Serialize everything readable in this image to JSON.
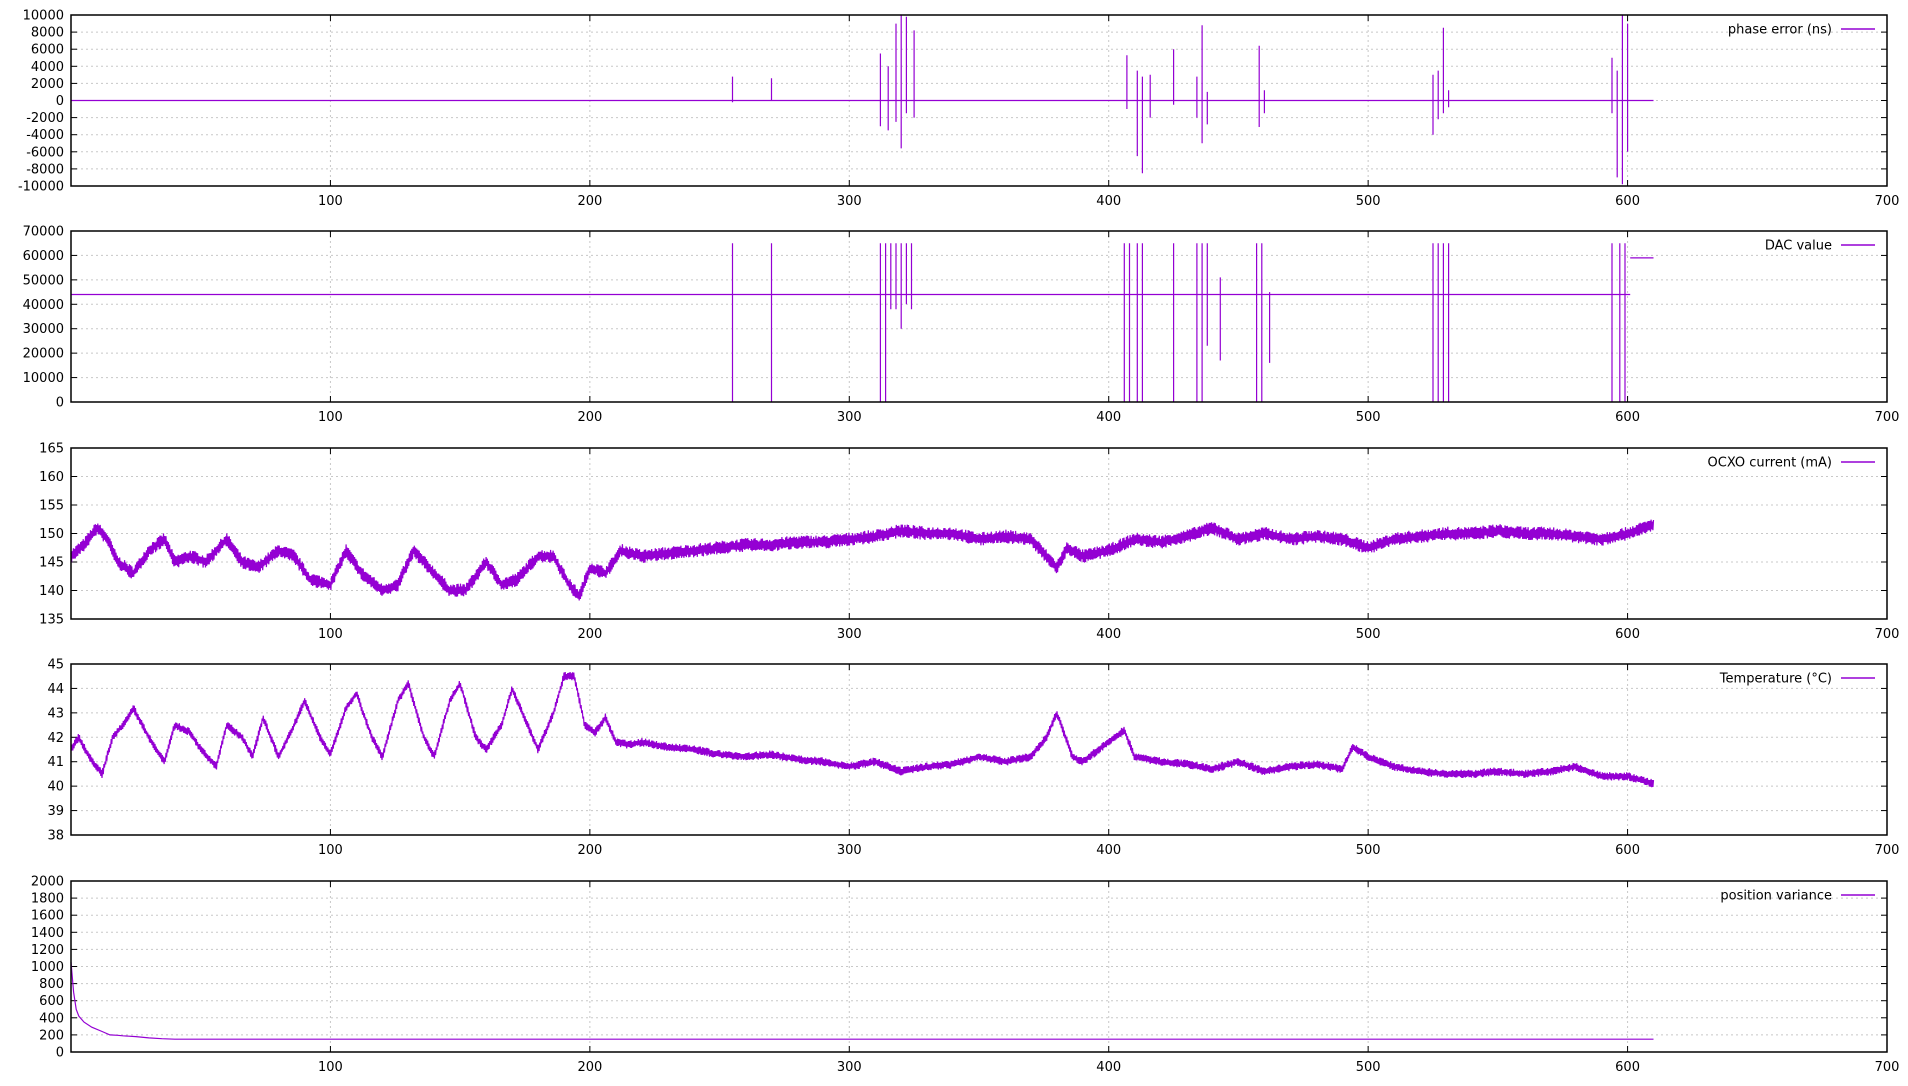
{
  "chart_data": [
    {
      "type": "line",
      "xlim": [
        0,
        700
      ],
      "x_ticks": [
        100,
        200,
        300,
        400,
        500,
        600,
        700
      ],
      "ylim": [
        -10000,
        10000
      ],
      "y_ticks": [
        10000,
        8000,
        6000,
        4000,
        2000,
        0,
        -2000,
        -4000,
        -6000,
        -8000,
        -10000
      ],
      "grid": true,
      "legend": "top-right",
      "series": [
        {
          "name": "phase error (ns)",
          "color": "#9400d3",
          "style": "spikes",
          "x": [
            0,
            610
          ],
          "baseline": 0,
          "spikes": [
            [
              255,
              2800,
              -200
            ],
            [
              270,
              2600,
              0
            ],
            [
              312,
              5500,
              -3000
            ],
            [
              315,
              4000,
              -3500
            ],
            [
              318,
              9000,
              -2500
            ],
            [
              320,
              10000,
              -5600
            ],
            [
              322,
              9800,
              -1500
            ],
            [
              325,
              8200,
              -2000
            ],
            [
              407,
              5300,
              -1000
            ],
            [
              411,
              3500,
              -6500
            ],
            [
              413,
              2800,
              -8500
            ],
            [
              416,
              3000,
              -2000
            ],
            [
              425,
              6000,
              -500
            ],
            [
              434,
              2800,
              -2000
            ],
            [
              436,
              8800,
              -5000
            ],
            [
              438,
              1000,
              -2800
            ],
            [
              458,
              6400,
              -3100
            ],
            [
              460,
              1200,
              -1500
            ],
            [
              525,
              3000,
              -4000
            ],
            [
              527,
              3500,
              -2200
            ],
            [
              529,
              8500,
              -1500
            ],
            [
              531,
              1200,
              -800
            ],
            [
              594,
              5000,
              -1500
            ],
            [
              596,
              3500,
              -9000
            ],
            [
              598,
              10000,
              -9800
            ],
            [
              600,
              9000,
              -6000
            ]
          ]
        }
      ]
    },
    {
      "type": "line",
      "xlim": [
        0,
        700
      ],
      "x_ticks": [
        100,
        200,
        300,
        400,
        500,
        600,
        700
      ],
      "ylim": [
        0,
        70000
      ],
      "y_ticks": [
        70000,
        60000,
        50000,
        40000,
        30000,
        20000,
        10000,
        0
      ],
      "grid": true,
      "legend": "top-right",
      "series": [
        {
          "name": "DAC value",
          "color": "#9400d3",
          "style": "spikes",
          "x": [
            0,
            610
          ],
          "baseline": 44000,
          "spikes": [
            [
              255,
              65000,
              0
            ],
            [
              270,
              65000,
              0
            ],
            [
              312,
              65000,
              0
            ],
            [
              314,
              65000,
              0
            ],
            [
              316,
              65000,
              38000
            ],
            [
              318,
              65000,
              38000
            ],
            [
              320,
              65000,
              30000
            ],
            [
              322,
              65000,
              40000
            ],
            [
              324,
              65000,
              38000
            ],
            [
              406,
              65000,
              0
            ],
            [
              408,
              65000,
              0
            ],
            [
              411,
              65000,
              0
            ],
            [
              413,
              65000,
              0
            ],
            [
              425,
              65000,
              0
            ],
            [
              434,
              65000,
              0
            ],
            [
              436,
              65000,
              0
            ],
            [
              438,
              65000,
              23000
            ],
            [
              441,
              23000,
              23000
            ],
            [
              443,
              51000,
              17000
            ],
            [
              457,
              65000,
              0
            ],
            [
              459,
              65000,
              0
            ],
            [
              462,
              45000,
              16000
            ],
            [
              525,
              65000,
              0
            ],
            [
              527,
              65000,
              0
            ],
            [
              529,
              65000,
              0
            ],
            [
              531,
              65000,
              0
            ],
            [
              594,
              65000,
              0
            ],
            [
              597,
              65000,
              0
            ],
            [
              599,
              65000,
              0
            ],
            [
              601,
              59000,
              59000
            ]
          ],
          "tail": {
            "from": 601,
            "to": 610,
            "value": 59000
          }
        }
      ]
    },
    {
      "type": "line",
      "xlim": [
        0,
        700
      ],
      "x_ticks": [
        100,
        200,
        300,
        400,
        500,
        600,
        700
      ],
      "ylim": [
        135,
        165
      ],
      "y_ticks": [
        165,
        160,
        155,
        150,
        145,
        140,
        135
      ],
      "grid": true,
      "legend": "top-right",
      "series": [
        {
          "name": "OCXO current (mA)",
          "color": "#9400d3",
          "style": "noisy-band",
          "band": 2.4,
          "x": [
            0,
            5,
            10,
            14,
            18,
            24,
            30,
            36,
            40,
            46,
            52,
            60,
            66,
            72,
            80,
            86,
            92,
            100,
            106,
            112,
            120,
            126,
            132,
            140,
            146,
            152,
            160,
            166,
            172,
            180,
            186,
            192,
            196,
            200,
            206,
            212,
            220,
            230,
            240,
            250,
            260,
            270,
            280,
            290,
            300,
            310,
            320,
            330,
            340,
            350,
            360,
            370,
            380,
            384,
            390,
            400,
            410,
            420,
            430,
            440,
            450,
            460,
            470,
            480,
            490,
            500,
            510,
            520,
            530,
            540,
            550,
            560,
            570,
            580,
            590,
            600,
            610
          ],
          "y": [
            146,
            148,
            151,
            149,
            145,
            143,
            147,
            149,
            145,
            146,
            145,
            149,
            145,
            144,
            147,
            146,
            142,
            141,
            147,
            143,
            140,
            141,
            147,
            143,
            140,
            140,
            145,
            141,
            142,
            146,
            146,
            141,
            139,
            144,
            143,
            147,
            146,
            146.5,
            147,
            147.5,
            148,
            148,
            148.5,
            148.5,
            149,
            149.5,
            150.5,
            150,
            150,
            149,
            149.5,
            149,
            144,
            147.5,
            146,
            147,
            149,
            148.5,
            149.5,
            151,
            149,
            150,
            149,
            149.5,
            149,
            147.5,
            149,
            149.5,
            150,
            150,
            150.5,
            150,
            150,
            149.5,
            149,
            150,
            151.5
          ]
        }
      ]
    },
    {
      "type": "line",
      "xlim": [
        0,
        700
      ],
      "x_ticks": [
        100,
        200,
        300,
        400,
        500,
        600,
        700
      ],
      "ylim": [
        38,
        45
      ],
      "y_ticks": [
        45,
        44,
        43,
        42,
        41,
        40,
        39,
        38
      ],
      "grid": true,
      "legend": "top-right",
      "series": [
        {
          "name": "Temperature (°C)",
          "color": "#9400d3",
          "style": "noisy-band",
          "band": 0.35,
          "x": [
            0,
            3,
            7,
            12,
            16,
            20,
            24,
            30,
            36,
            40,
            46,
            50,
            56,
            60,
            66,
            70,
            74,
            80,
            86,
            90,
            96,
            100,
            106,
            110,
            116,
            120,
            126,
            130,
            136,
            140,
            146,
            150,
            156,
            160,
            166,
            170,
            176,
            180,
            186,
            190,
            194,
            198,
            202,
            206,
            210,
            215,
            220,
            230,
            240,
            250,
            260,
            270,
            280,
            290,
            300,
            310,
            320,
            330,
            340,
            350,
            360,
            370,
            376,
            380,
            386,
            390,
            400,
            406,
            410,
            420,
            430,
            440,
            450,
            460,
            470,
            480,
            490,
            494,
            500,
            510,
            520,
            530,
            540,
            550,
            560,
            570,
            580,
            590,
            600,
            610
          ],
          "y": [
            41.5,
            42,
            41.2,
            40.5,
            42,
            42.5,
            43.2,
            42,
            41,
            42.5,
            42.2,
            41.5,
            40.8,
            42.5,
            42,
            41.2,
            42.8,
            41.2,
            42.5,
            43.5,
            42,
            41.3,
            43.2,
            43.8,
            42,
            41.2,
            43.5,
            44.2,
            42,
            41.2,
            43.5,
            44.2,
            42,
            41.5,
            42.5,
            44,
            42.5,
            41.5,
            43,
            44.5,
            44.5,
            42.5,
            42.2,
            42.8,
            41.8,
            41.7,
            41.8,
            41.6,
            41.5,
            41.3,
            41.2,
            41.3,
            41.1,
            41,
            40.8,
            41,
            40.6,
            40.8,
            40.9,
            41.2,
            41,
            41.2,
            42,
            43,
            41.2,
            41,
            41.8,
            42.3,
            41.2,
            41,
            40.9,
            40.7,
            41,
            40.6,
            40.8,
            40.9,
            40.7,
            41.6,
            41.2,
            40.8,
            40.6,
            40.5,
            40.5,
            40.6,
            40.5,
            40.6,
            40.8,
            40.4,
            40.4,
            40.1
          ]
        }
      ]
    },
    {
      "type": "line",
      "xlim": [
        0,
        700
      ],
      "x_ticks": [
        100,
        200,
        300,
        400,
        500,
        600,
        700
      ],
      "ylim": [
        0,
        2000
      ],
      "y_ticks": [
        2000,
        1800,
        1600,
        1400,
        1200,
        1000,
        800,
        600,
        400,
        200,
        0
      ],
      "grid": true,
      "legend": "top-right",
      "series": [
        {
          "name": "position variance",
          "color": "#9400d3",
          "style": "line",
          "x": [
            0,
            1,
            2,
            3,
            5,
            8,
            12,
            15,
            18,
            20,
            25,
            30,
            35,
            40,
            100,
            200,
            300,
            400,
            500,
            600,
            610
          ],
          "y": [
            1050,
            700,
            500,
            420,
            350,
            290,
            240,
            200,
            195,
            190,
            180,
            165,
            155,
            150,
            150,
            150,
            150,
            150,
            150,
            150,
            150
          ]
        }
      ]
    }
  ]
}
